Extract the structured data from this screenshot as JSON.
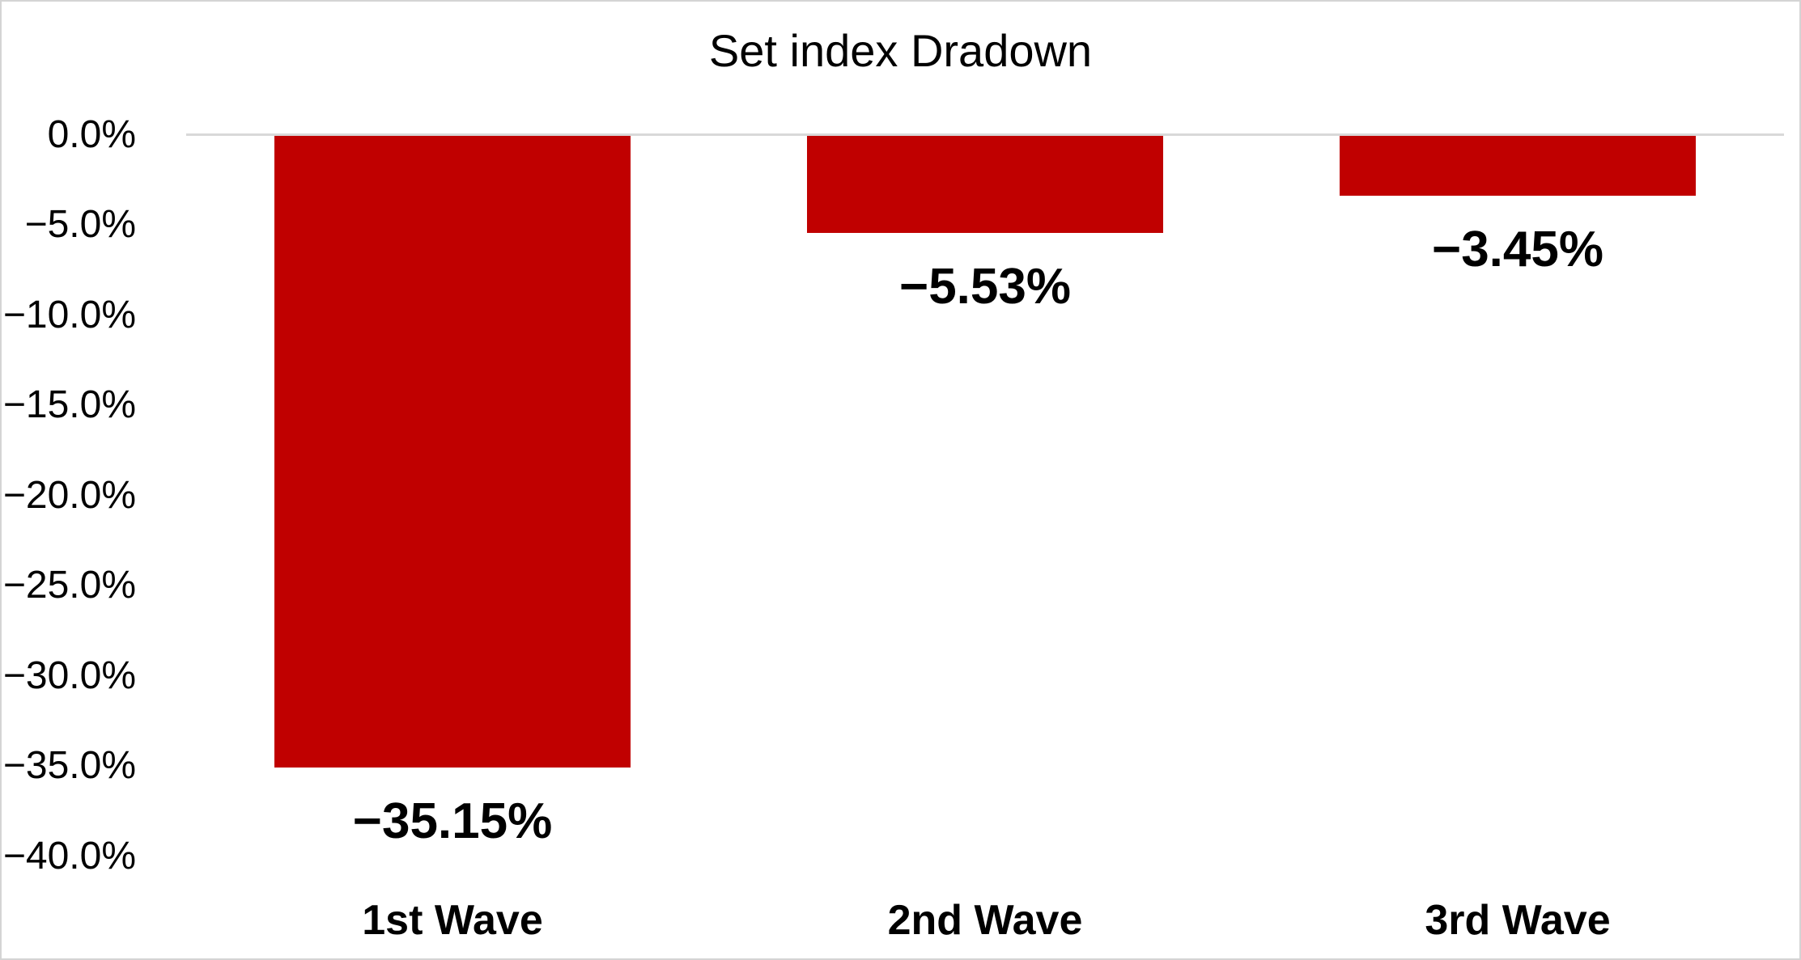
{
  "chart_data": {
    "type": "bar",
    "title": "Set index Dradown",
    "orientation": "vertical-negative",
    "categories": [
      "1st Wave",
      "2nd Wave",
      "3rd Wave"
    ],
    "values": [
      -35.15,
      -5.53,
      -3.45
    ],
    "data_labels": [
      "−35.15%",
      "−5.53%",
      "−3.45%"
    ],
    "y_ticks": [
      {
        "label": "0.0%",
        "value": 0
      },
      {
        "label": "−5.0%",
        "value": -5
      },
      {
        "label": "−10.0%",
        "value": -10
      },
      {
        "label": "−15.0%",
        "value": -15
      },
      {
        "label": "−20.0%",
        "value": -20
      },
      {
        "label": "−25.0%",
        "value": -25
      },
      {
        "label": "−30.0%",
        "value": -30
      },
      {
        "label": "−35.0%",
        "value": -35
      },
      {
        "label": "−40.0%",
        "value": -40
      }
    ],
    "ylim": [
      -40,
      0
    ],
    "xlabel": "",
    "ylabel": "",
    "legend": "none",
    "grid": "zero-baseline-only",
    "colors": {
      "bar": "#C00000",
      "gridline": "#D9D9D9",
      "text": "#000000",
      "background": "#FFFFFF",
      "border": "#D4D4D4"
    }
  }
}
